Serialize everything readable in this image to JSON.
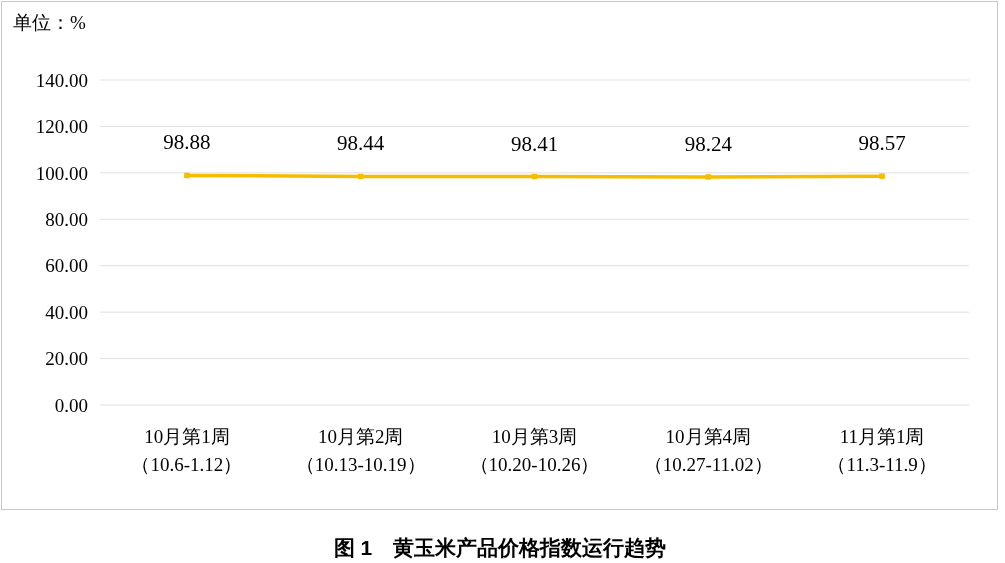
{
  "chart_data": {
    "type": "line",
    "title": "图 1　黄玉米产品价格指数运行趋势",
    "ylabel": "单位：%",
    "categories": [
      "10月第1周（10.6-1.12）",
      "10月第2周（10.13-10.19）",
      "10月第3周（10.20-10.26）",
      "10月第4周（10.27-11.02）",
      "11月第1周（11.3-11.9）"
    ],
    "series": [
      {
        "color": "#f5bd00",
        "values": [
          98.88,
          98.44,
          98.41,
          98.24,
          98.57
        ]
      }
    ],
    "ylim": [
      0,
      140
    ],
    "yticks": [
      {
        "value": 0,
        "label": "0.00"
      },
      {
        "value": 20,
        "label": "20.00"
      },
      {
        "value": 40,
        "label": "40.00"
      },
      {
        "value": 60,
        "label": "60.00"
      },
      {
        "value": 80,
        "label": "80.00"
      },
      {
        "value": 100,
        "label": "100.00"
      },
      {
        "value": 120,
        "label": "120.00"
      },
      {
        "value": 140,
        "label": "140.00"
      }
    ],
    "grid": "y",
    "marker": "square",
    "line_style": "solid",
    "data_labels": true
  }
}
